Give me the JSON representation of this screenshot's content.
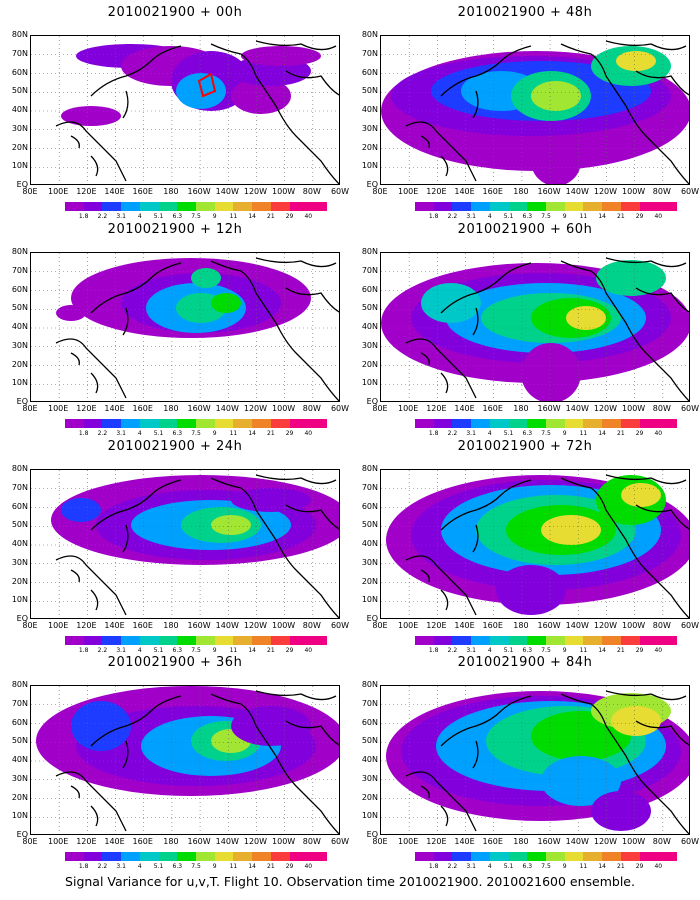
{
  "caption": "Signal Variance for u,v,T. Flight 10. Observation time 2010021900. 2010021600 ensemble.",
  "lat_labels": [
    "80N",
    "70N",
    "60N",
    "50N",
    "40N",
    "30N",
    "20N",
    "10N",
    "EQ"
  ],
  "lon_labels": [
    "80E",
    "100E",
    "120E",
    "140E",
    "160E",
    "180",
    "160W",
    "140W",
    "120W",
    "100W",
    "80W",
    "60W"
  ],
  "colorbar": {
    "levels": [
      "1.8",
      "2.2",
      "3.1",
      "4",
      "5.1",
      "6.3",
      "7.5",
      "9",
      "11",
      "14",
      "21",
      "29",
      "40"
    ],
    "colors": [
      "#a000c8",
      "#8200dc",
      "#1e3cff",
      "#00a0ff",
      "#00c8c8",
      "#00d28c",
      "#00dc00",
      "#a0e632",
      "#e6dc32",
      "#e6af2d",
      "#f08228",
      "#fa3c3c",
      "#f00082"
    ]
  },
  "panels": [
    {
      "title": "2010021900 + 00h"
    },
    {
      "title": "2010021900 + 48h"
    },
    {
      "title": "2010021900 + 12h"
    },
    {
      "title": "2010021900 + 60h"
    },
    {
      "title": "2010021900 + 24h"
    },
    {
      "title": "2010021900 + 72h"
    },
    {
      "title": "2010021900 + 36h"
    },
    {
      "title": "2010021900 + 84h"
    }
  ]
}
